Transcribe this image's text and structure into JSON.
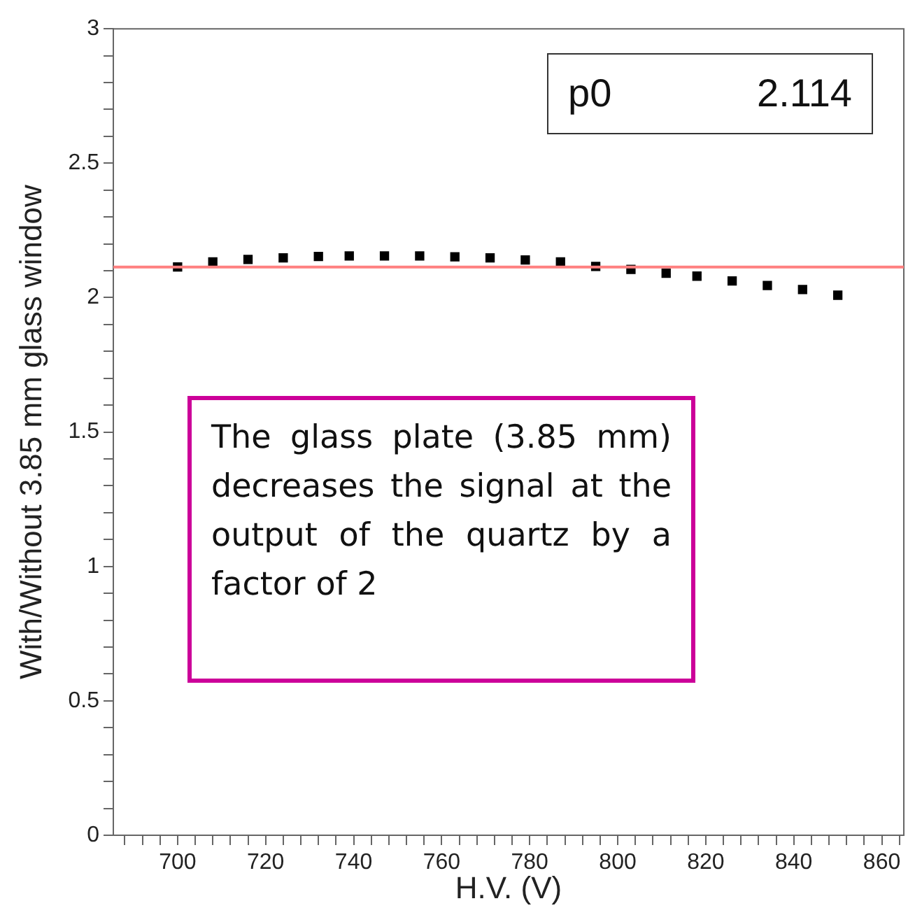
{
  "chart_data": {
    "type": "scatter",
    "xlabel": "H.V. (V)",
    "ylabel": "With/Without 3.85 mm glass window",
    "x": [
      700,
      708,
      716,
      724,
      732,
      739,
      747,
      755,
      763,
      771,
      779,
      787,
      795,
      803,
      811,
      818,
      826,
      834,
      842,
      850
    ],
    "series": [
      {
        "color": "#000000",
        "values": [
          2.114,
          2.133,
          2.142,
          2.148,
          2.153,
          2.155,
          2.155,
          2.155,
          2.152,
          2.148,
          2.14,
          2.133,
          2.116,
          2.105,
          2.091,
          2.08,
          2.062,
          2.045,
          2.03,
          2.009
        ]
      }
    ],
    "marker": "square",
    "grid": false,
    "legend": false,
    "xlim": [
      685.4,
      865
    ],
    "xticks": [
      {
        "value": 688,
        "label": null
      },
      {
        "value": 692,
        "label": null
      },
      {
        "value": 696,
        "label": null
      },
      700,
      {
        "value": 704,
        "label": null
      },
      {
        "value": 708,
        "label": null
      },
      {
        "value": 712,
        "label": null
      },
      {
        "value": 716,
        "label": null
      },
      720,
      {
        "value": 724,
        "label": null
      },
      {
        "value": 728,
        "label": null
      },
      {
        "value": 732,
        "label": null
      },
      {
        "value": 736,
        "label": null
      },
      740,
      {
        "value": 744,
        "label": null
      },
      {
        "value": 748,
        "label": null
      },
      {
        "value": 752,
        "label": null
      },
      {
        "value": 756,
        "label": null
      },
      760,
      {
        "value": 764,
        "label": null
      },
      {
        "value": 768,
        "label": null
      },
      {
        "value": 772,
        "label": null
      },
      {
        "value": 776,
        "label": null
      },
      780,
      {
        "value": 784,
        "label": null
      },
      {
        "value": 788,
        "label": null
      },
      {
        "value": 792,
        "label": null
      },
      {
        "value": 796,
        "label": null
      },
      800,
      {
        "value": 804,
        "label": null
      },
      {
        "value": 808,
        "label": null
      },
      {
        "value": 812,
        "label": null
      },
      {
        "value": 816,
        "label": null
      },
      820,
      {
        "value": 824,
        "label": null
      },
      {
        "value": 828,
        "label": null
      },
      {
        "value": 832,
        "label": null
      },
      {
        "value": 836,
        "label": null
      },
      840,
      {
        "value": 844,
        "label": null
      },
      {
        "value": 848,
        "label": null
      },
      {
        "value": 852,
        "label": null
      },
      {
        "value": 856,
        "label": null
      },
      860,
      {
        "value": 864,
        "label": null
      }
    ],
    "ylim": [
      0,
      3
    ],
    "yticks": [
      0,
      {
        "value": 0.1,
        "label": null
      },
      {
        "value": 0.2,
        "label": null
      },
      {
        "value": 0.3,
        "label": null
      },
      {
        "value": 0.4,
        "label": null
      },
      0.5,
      {
        "value": 0.6,
        "label": null
      },
      {
        "value": 0.7,
        "label": null
      },
      {
        "value": 0.8,
        "label": null
      },
      {
        "value": 0.9,
        "label": null
      },
      1,
      {
        "value": 1.1,
        "label": null
      },
      {
        "value": 1.2,
        "label": null
      },
      {
        "value": 1.3,
        "label": null
      },
      {
        "value": 1.4,
        "label": null
      },
      1.5,
      {
        "value": 1.6,
        "label": null
      },
      {
        "value": 1.7,
        "label": null
      },
      {
        "value": 1.8,
        "label": null
      },
      {
        "value": 1.9,
        "label": null
      },
      2,
      {
        "value": 2.1,
        "label": null
      },
      {
        "value": 2.2,
        "label": null
      },
      {
        "value": 2.3,
        "label": null
      },
      {
        "value": 2.4,
        "label": null
      },
      2.5,
      {
        "value": 2.6,
        "label": null
      },
      {
        "value": 2.7,
        "label": null
      },
      {
        "value": 2.8,
        "label": null
      },
      {
        "value": 2.9,
        "label": null
      },
      3
    ],
    "ref_lines": [
      {
        "axis": "y",
        "value": 2.114,
        "color": "#ff8080"
      }
    ],
    "annotations": [
      "p0",
      "2.114",
      "The glass plate (3.85 mm) decreases the signal  at the output of the quartz by a factor of 2"
    ]
  }
}
